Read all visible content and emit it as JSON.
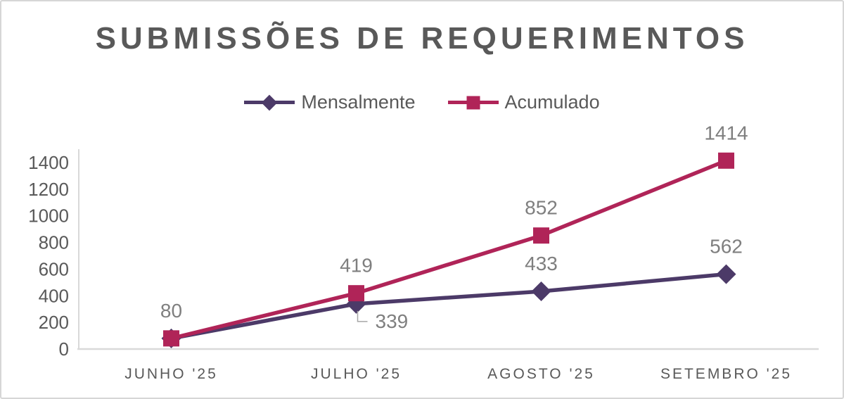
{
  "chart_data": {
    "type": "line",
    "title": "SUBMISSÕES DE REQUERIMENTOS",
    "title_color": "#595959",
    "categories": [
      "JUNHO '25",
      "JULHO '25",
      "AGOSTO '25",
      "SETEMBRO '25"
    ],
    "series": [
      {
        "name": "Mensalmente",
        "marker": "diamond",
        "color": "#4C3A68",
        "values": [
          80,
          339,
          433,
          562
        ],
        "label_positions": [
          "hidden",
          "leader-below",
          "above",
          "above"
        ]
      },
      {
        "name": "Acumulado",
        "marker": "square",
        "color": "#B02458",
        "values": [
          80,
          419,
          852,
          1414
        ],
        "label_positions": [
          "above",
          "above",
          "above",
          "above"
        ]
      }
    ],
    "ylim": [
      0,
      1500
    ],
    "yticks": [
      0,
      200,
      400,
      600,
      800,
      1000,
      1200,
      1400
    ],
    "xlabel": "",
    "ylabel": "",
    "grid": false,
    "data_labels": true,
    "legend_position": "top",
    "axis_color": "#D9D9D9",
    "tick_label_color": "#595959",
    "data_label_color": "#7F7F7F",
    "leader_line_color": "#A6A6A6",
    "legend_text_color": "#595959"
  }
}
